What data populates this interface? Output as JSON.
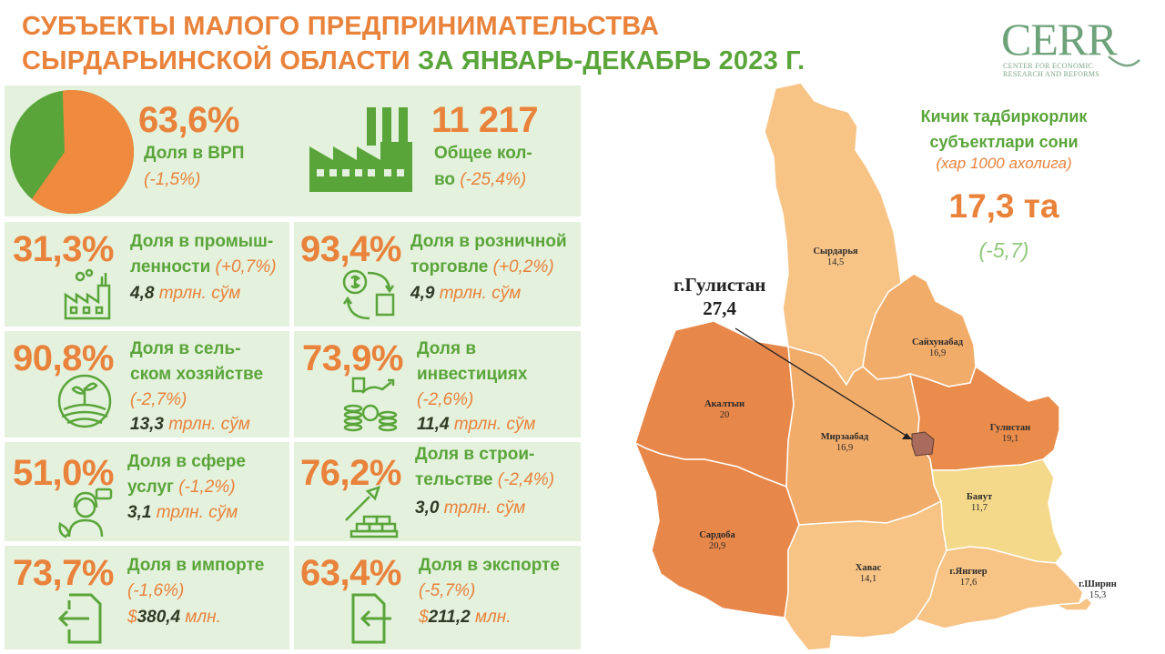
{
  "header": {
    "title_line1": "СУБЪЕКТЫ МАЛОГО ПРЕДПРИНИМАТЕЛЬСТВА",
    "title_line2_part1": "СЫРДАРЬИНСКОЙ ОБЛАСТИ",
    "title_line2_part2": " ЗА ЯНВАРЬ-ДЕКАБРЬ 2023 Г."
  },
  "logo": {
    "text": "CERR",
    "sub_line1": "CENTER FOR ECONOMIC",
    "sub_line2": "RESEARCH AND REFORMS"
  },
  "colors": {
    "orange": "#e9823a",
    "green": "#5aa53a",
    "card_bg": "#e4f1dd",
    "dark_text": "#2e3a22"
  },
  "top": {
    "gdp": {
      "value": "63,6%",
      "label": "Доля в ВРП",
      "delta": "(-1,5%)",
      "share": 0.636
    },
    "count": {
      "value": "11 217",
      "label_line1": "Общее кол-",
      "label_line2": "во",
      "delta": " (-25,4%)",
      "icon": "factory-icon"
    }
  },
  "cards": [
    {
      "id": "industry",
      "value": "31,3%",
      "label1": "Доля в промыш-",
      "label2": "ленности",
      "delta": " (+0,7%)",
      "amount": "4,8",
      "unit": " трлн. сўм",
      "icon": "industry-icon"
    },
    {
      "id": "retail",
      "value": "93,4%",
      "label1": "Доля в розничной",
      "label2": "торговле",
      "delta": " (+0,2%)",
      "amount": "4,9",
      "unit": " трлн. сўм",
      "icon": "retail-icon"
    },
    {
      "id": "agriculture",
      "value": "90,8%",
      "label1": "Доля в сель-",
      "label2": "ском хозяйстве",
      "delta": "(-2,7%)",
      "amount": "13,3",
      "unit": " трлн. сўм",
      "icon": "agriculture-icon"
    },
    {
      "id": "investment",
      "value": "73,9%",
      "label1": "Доля в",
      "label2": "инвестициях",
      "delta": "(-2,6%)",
      "amount": "11,4",
      "unit": " трлн. сўм",
      "icon": "investment-icon"
    },
    {
      "id": "services",
      "value": "51,0%",
      "label1": "Доля в сфере",
      "label2": "услуг",
      "delta": " (-1,2%)",
      "amount": "3,1",
      "unit": " трлн. сўм",
      "icon": "services-icon"
    },
    {
      "id": "construction",
      "value": "76,2%",
      "label1": "Доля в строи-",
      "label2": "тельстве",
      "delta": " (-2,4%)",
      "amount": "3,0",
      "unit": " трлн. сўм",
      "icon": "construction-icon"
    },
    {
      "id": "import",
      "value": "73,7%",
      "label1": "Доля в импорте",
      "label2": "",
      "delta": "(-1,6%)",
      "amount_prefix": "$",
      "amount": "380,4",
      "unit": " млн.",
      "icon": "import-icon"
    },
    {
      "id": "export",
      "value": "63,4%",
      "label1": "Доля в экспорте",
      "label2": "",
      "delta": "(-5,7%)",
      "amount_prefix": "$",
      "amount": "211,2",
      "unit": " млн.",
      "icon": "export-icon"
    }
  ],
  "side": {
    "title_line1": "Кичик тадбиркорлик",
    "title_line2": "субъектлари сони",
    "subtitle": "(хар 1000 ахолига)",
    "value": "17,3 та",
    "delta": "(-5,7)"
  },
  "callout": {
    "name": "г.Гулистан",
    "value": "27,4"
  },
  "regions": [
    {
      "id": "syrdarya",
      "name": "Сырдарья",
      "value": "14,5",
      "color": "#f7c486"
    },
    {
      "id": "saykhunabad",
      "name": "Сайхунабад",
      "value": "16,9",
      "color": "#f2ac6a"
    },
    {
      "id": "akaltyn",
      "name": "Акалтын",
      "value": "20",
      "color": "#e8874a"
    },
    {
      "id": "mirzaabad",
      "name": "Мирзаабад",
      "value": "16,9",
      "color": "#f2ac6a"
    },
    {
      "id": "gulistan",
      "name": "Гулистан",
      "value": "19,1",
      "color": "#ea8c4c"
    },
    {
      "id": "bayaut",
      "name": "Баяут",
      "value": "11,7",
      "color": "#f4d98a"
    },
    {
      "id": "sardoba",
      "name": "Сардоба",
      "value": "20,9",
      "color": "#e8874a"
    },
    {
      "id": "khavas",
      "name": "Хавас",
      "value": "14,1",
      "color": "#f7c486"
    },
    {
      "id": "yangier",
      "name": "г.Янгиер",
      "value": "17,6",
      "color": "#f7c486"
    },
    {
      "id": "shirin",
      "name": "г.Ширин",
      "value": "15,3",
      "color": "#f7c486"
    }
  ]
}
